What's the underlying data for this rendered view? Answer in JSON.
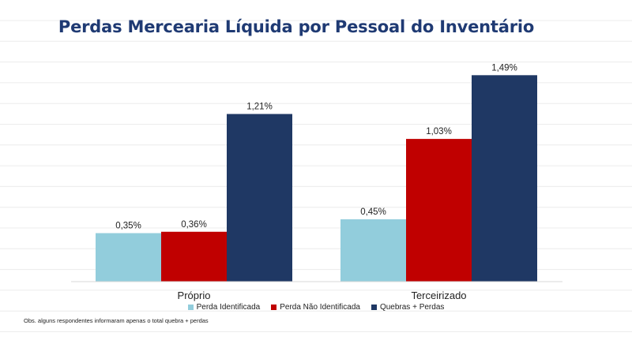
{
  "colors": {
    "title": "#1f3a73",
    "grid": "#ececec"
  },
  "chart_data": {
    "type": "bar",
    "title": "Perdas Mercearia Líquida por Pessoal do Inventário",
    "categories": [
      "Próprio",
      "Terceirizado"
    ],
    "series": [
      {
        "name": "Perda Identificada",
        "color": "#92cddc",
        "values": [
          0.35,
          0.45
        ],
        "labels": [
          "0,35%",
          "0,45%"
        ]
      },
      {
        "name": "Perda Não Identificada",
        "color": "#c00000",
        "values": [
          0.36,
          1.03
        ],
        "labels": [
          "0,36%",
          "1,03%"
        ]
      },
      {
        "name": "Quebras + Perdas",
        "color": "#1f3864",
        "values": [
          1.21,
          1.49
        ],
        "labels": [
          "1,21%",
          "1,49%"
        ]
      }
    ],
    "xlabel": "",
    "ylabel": "",
    "ylim": [
      0,
      1.6
    ],
    "grid": false,
    "legend": "bottom"
  },
  "note": "Obs. alguns respondentes informaram apenas  o total quebra + perdas"
}
